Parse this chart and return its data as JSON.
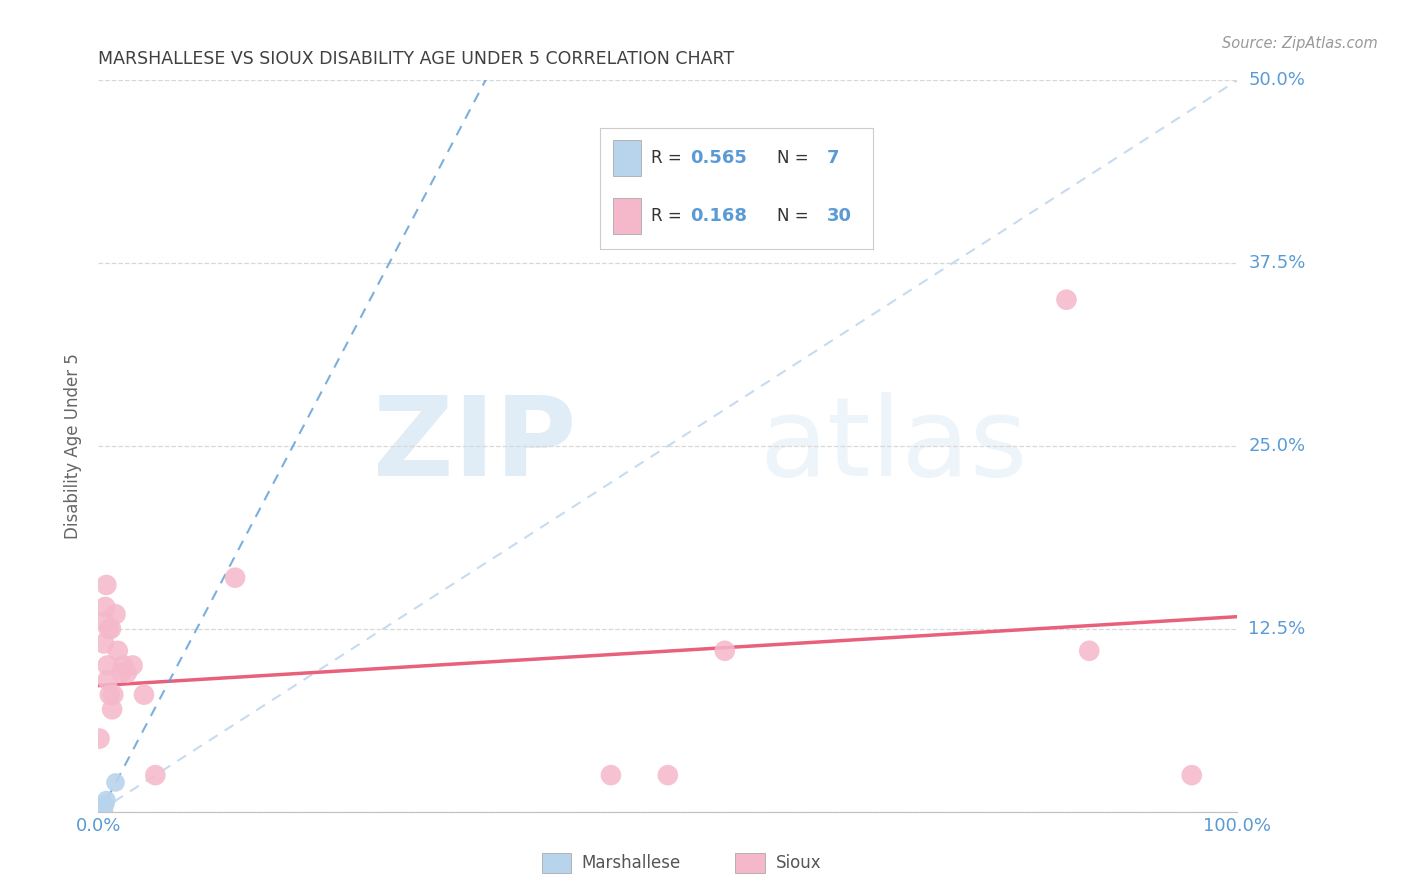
{
  "title": "MARSHALLESE VS SIOUX DISABILITY AGE UNDER 5 CORRELATION CHART",
  "source": "Source: ZipAtlas.com",
  "ylabel": "Disability Age Under 5",
  "watermark_zip": "ZIP",
  "watermark_atlas": "atlas",
  "xlim": [
    0.0,
    1.0
  ],
  "ylim": [
    0.0,
    0.5
  ],
  "xticks": [
    0.0,
    0.125,
    0.25,
    0.375,
    0.5,
    0.625,
    0.75,
    0.875,
    1.0
  ],
  "xticklabels": [
    "0.0%",
    "",
    "",
    "",
    "",
    "",
    "",
    "",
    "100.0%"
  ],
  "yticks": [
    0.0,
    0.125,
    0.25,
    0.375,
    0.5
  ],
  "yticklabels": [
    "",
    "12.5%",
    "25.0%",
    "37.5%",
    "50.0%"
  ],
  "marshallese_R": 0.565,
  "marshallese_N": 7,
  "sioux_R": 0.168,
  "sioux_N": 30,
  "marshallese_color": "#b8d4ed",
  "sioux_color": "#f5b8cb",
  "marshallese_line_color": "#5b9bd5",
  "sioux_line_color": "#e8607a",
  "diagonal_color": "#c0d8f0",
  "grid_color": "#d8d8d8",
  "title_color": "#404040",
  "axis_label_color": "#5b9bd5",
  "legend_label_color": "#404040",
  "marshallese_x": [
    0.001,
    0.002,
    0.003,
    0.004,
    0.006,
    0.007,
    0.015
  ],
  "marshallese_y": [
    0.0,
    0.0,
    0.002,
    0.003,
    0.005,
    0.008,
    0.02
  ],
  "sioux_x": [
    0.001,
    0.002,
    0.003,
    0.004,
    0.005,
    0.005,
    0.006,
    0.007,
    0.008,
    0.008,
    0.009,
    0.01,
    0.011,
    0.012,
    0.013,
    0.015,
    0.017,
    0.02,
    0.022,
    0.025,
    0.03,
    0.04,
    0.05,
    0.12,
    0.45,
    0.5,
    0.55,
    0.85,
    0.87,
    0.96
  ],
  "sioux_y": [
    0.05,
    0.0,
    0.0,
    0.0,
    0.115,
    0.13,
    0.14,
    0.155,
    0.09,
    0.1,
    0.125,
    0.08,
    0.125,
    0.07,
    0.08,
    0.135,
    0.11,
    0.095,
    0.1,
    0.095,
    0.1,
    0.08,
    0.025,
    0.16,
    0.025,
    0.025,
    0.11,
    0.35,
    0.11,
    0.025
  ]
}
